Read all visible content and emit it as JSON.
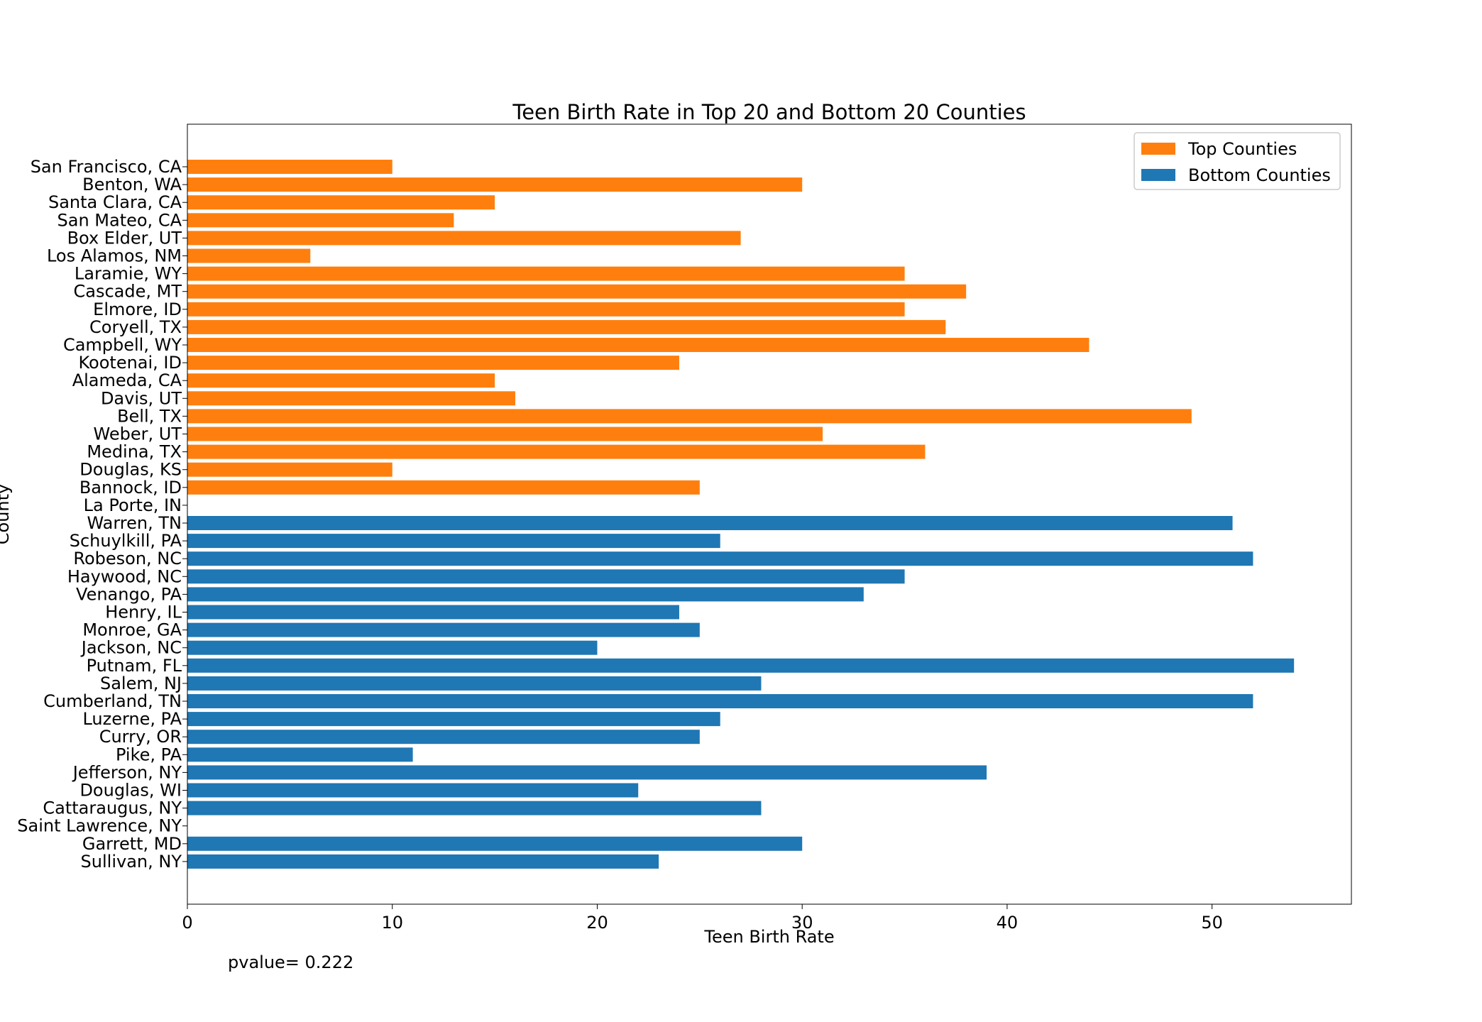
{
  "chart_data": {
    "type": "bar",
    "orientation": "horizontal",
    "title": "Teen Birth Rate in Top 20 and Bottom 20 Counties",
    "xlabel": "Teen Birth Rate",
    "ylabel": "County",
    "xlim": [
      0,
      56.8
    ],
    "xticks": [
      0,
      10,
      20,
      30,
      40,
      50
    ],
    "grid": false,
    "legend_position": "top-right",
    "annotation": "pvalue= 0.222",
    "series": [
      {
        "name": "Top Counties",
        "color": "#ff7f0e",
        "categories": [
          "San Francisco, CA",
          "Benton, WA",
          "Santa Clara, CA",
          "San Mateo, CA",
          "Box Elder, UT",
          "Los Alamos, NM",
          "Laramie, WY",
          "Cascade, MT",
          "Elmore, ID",
          "Coryell, TX",
          "Campbell, WY",
          "Kootenai, ID",
          "Alameda, CA",
          "Davis, UT",
          "Bell, TX",
          "Weber, UT",
          "Medina, TX",
          "Douglas, KS",
          "Bannock, ID",
          "La Porte, IN"
        ],
        "values": [
          10,
          30,
          15,
          13,
          27,
          6,
          35,
          38,
          35,
          37,
          44,
          24,
          15,
          16,
          49,
          31,
          36,
          10,
          25,
          null
        ]
      },
      {
        "name": "Bottom Counties",
        "color": "#1f77b4",
        "categories": [
          "Warren, TN",
          "Schuylkill, PA",
          "Robeson, NC",
          "Haywood, NC",
          "Venango, PA",
          "Henry, IL",
          "Monroe, GA",
          "Jackson, NC",
          "Putnam, FL",
          "Salem, NJ",
          "Cumberland, TN",
          "Luzerne, PA",
          "Curry, OR",
          "Pike, PA",
          "Jefferson, NY",
          "Douglas, WI",
          "Cattaraugus, NY",
          "Saint Lawrence, NY",
          "Garrett, MD",
          "Sullivan, NY"
        ],
        "values": [
          51,
          26,
          52,
          35,
          33,
          24,
          25,
          20,
          54,
          28,
          52,
          26,
          25,
          11,
          39,
          22,
          28,
          null,
          30,
          23
        ]
      }
    ]
  }
}
